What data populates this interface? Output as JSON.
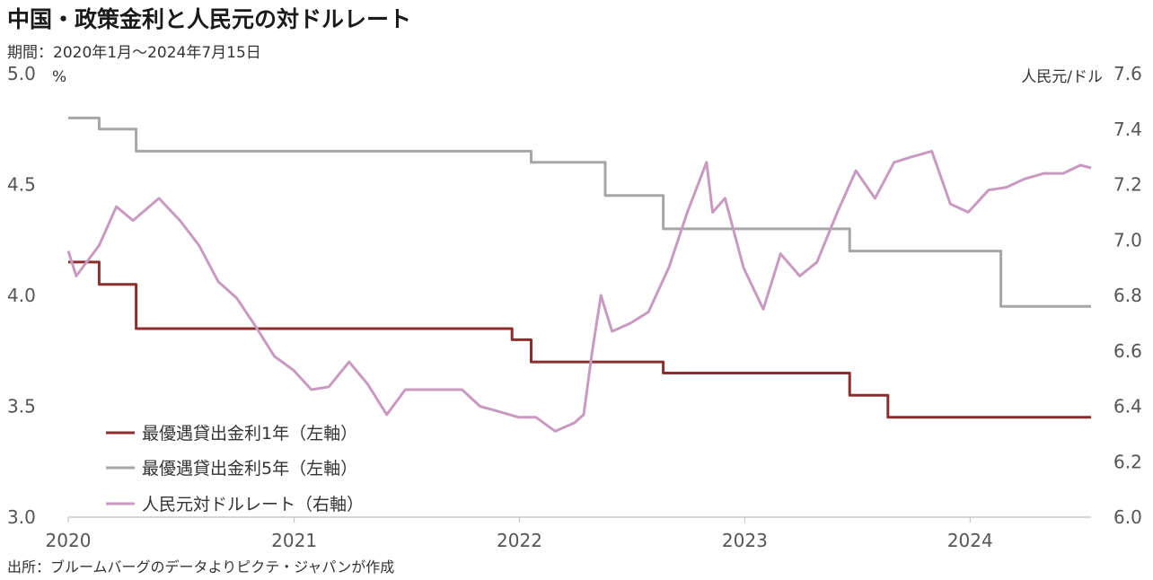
{
  "title": "中国・政策金利と人民元の対ドルレート",
  "period": "期間：2020年1月～2024年7月15日",
  "source": "出所：ブルームバーグのデータよりピクテ・ジャパンが作成",
  "colors": {
    "lpr1y": "#8b2e2e",
    "lpr5y": "#a6a6a6",
    "cny": "#c89ac0",
    "axis": "#bdbdbd"
  },
  "chart_data": {
    "type": "line",
    "x_range": [
      "2020-01-01",
      "2024-07-15"
    ],
    "x_ticks": [
      "2020",
      "2021",
      "2022",
      "2023",
      "2024"
    ],
    "left_axis": {
      "unit": "%",
      "range": [
        3.0,
        5.0
      ],
      "ticks": [
        "3.0",
        "3.5",
        "4.0",
        "4.5",
        "5.0"
      ]
    },
    "right_axis": {
      "unit": "人民元/ドル",
      "range": [
        6.0,
        7.6
      ],
      "ticks": [
        "6.0",
        "6.2",
        "6.4",
        "6.6",
        "6.8",
        "7.0",
        "7.2",
        "7.4",
        "7.6"
      ]
    },
    "legend": [
      "最優遇貸出金利1年（左軸）",
      "最優遇貸出金利5年（左軸）",
      "人民元対ドルレート（右軸）"
    ],
    "series": [
      {
        "name": "最優遇貸出金利1年（左軸）",
        "axis": "left",
        "step": true,
        "points": [
          [
            "2020-01-01",
            4.15
          ],
          [
            "2020-02-20",
            4.05
          ],
          [
            "2020-04-20",
            3.85
          ],
          [
            "2021-12-20",
            3.8
          ],
          [
            "2022-01-20",
            3.7
          ],
          [
            "2022-08-22",
            3.65
          ],
          [
            "2023-06-20",
            3.55
          ],
          [
            "2023-08-21",
            3.45
          ],
          [
            "2024-07-15",
            3.45
          ]
        ]
      },
      {
        "name": "最優遇貸出金利5年（左軸）",
        "axis": "left",
        "step": true,
        "points": [
          [
            "2020-01-01",
            4.8
          ],
          [
            "2020-02-20",
            4.75
          ],
          [
            "2020-04-20",
            4.65
          ],
          [
            "2022-01-20",
            4.6
          ],
          [
            "2022-05-20",
            4.45
          ],
          [
            "2022-08-22",
            4.3
          ],
          [
            "2023-06-20",
            4.2
          ],
          [
            "2024-02-20",
            3.95
          ],
          [
            "2024-07-15",
            3.95
          ]
        ]
      },
      {
        "name": "人民元対ドルレート（右軸）",
        "axis": "right",
        "step": false,
        "points": [
          [
            "2020-01-01",
            6.96
          ],
          [
            "2020-01-14",
            6.87
          ],
          [
            "2020-02-20",
            6.98
          ],
          [
            "2020-03-19",
            7.12
          ],
          [
            "2020-04-15",
            7.07
          ],
          [
            "2020-05-27",
            7.15
          ],
          [
            "2020-06-30",
            7.07
          ],
          [
            "2020-07-31",
            6.98
          ],
          [
            "2020-08-31",
            6.85
          ],
          [
            "2020-09-30",
            6.79
          ],
          [
            "2020-10-30",
            6.69
          ],
          [
            "2020-11-30",
            6.58
          ],
          [
            "2020-12-31",
            6.53
          ],
          [
            "2021-01-29",
            6.46
          ],
          [
            "2021-02-26",
            6.47
          ],
          [
            "2021-03-31",
            6.56
          ],
          [
            "2021-04-30",
            6.48
          ],
          [
            "2021-05-31",
            6.37
          ],
          [
            "2021-06-30",
            6.46
          ],
          [
            "2021-07-30",
            6.46
          ],
          [
            "2021-08-31",
            6.46
          ],
          [
            "2021-09-30",
            6.46
          ],
          [
            "2021-10-29",
            6.4
          ],
          [
            "2021-11-30",
            6.38
          ],
          [
            "2021-12-31",
            6.36
          ],
          [
            "2022-01-28",
            6.36
          ],
          [
            "2022-02-28",
            6.31
          ],
          [
            "2022-03-31",
            6.34
          ],
          [
            "2022-04-15",
            6.37
          ],
          [
            "2022-04-29",
            6.6
          ],
          [
            "2022-05-13",
            6.8
          ],
          [
            "2022-05-31",
            6.67
          ],
          [
            "2022-06-30",
            6.7
          ],
          [
            "2022-07-29",
            6.74
          ],
          [
            "2022-08-31",
            6.9
          ],
          [
            "2022-09-30",
            7.1
          ],
          [
            "2022-10-31",
            7.28
          ],
          [
            "2022-11-10",
            7.1
          ],
          [
            "2022-11-30",
            7.15
          ],
          [
            "2022-12-30",
            6.9
          ],
          [
            "2023-01-31",
            6.75
          ],
          [
            "2023-02-28",
            6.95
          ],
          [
            "2023-03-31",
            6.87
          ],
          [
            "2023-04-28",
            6.92
          ],
          [
            "2023-05-31",
            7.1
          ],
          [
            "2023-06-30",
            7.25
          ],
          [
            "2023-07-31",
            7.15
          ],
          [
            "2023-08-31",
            7.28
          ],
          [
            "2023-09-29",
            7.3
          ],
          [
            "2023-10-31",
            7.32
          ],
          [
            "2023-11-30",
            7.13
          ],
          [
            "2023-12-29",
            7.1
          ],
          [
            "2024-01-31",
            7.18
          ],
          [
            "2024-02-29",
            7.19
          ],
          [
            "2024-03-29",
            7.22
          ],
          [
            "2024-04-30",
            7.24
          ],
          [
            "2024-05-31",
            7.24
          ],
          [
            "2024-06-28",
            7.27
          ],
          [
            "2024-07-15",
            7.26
          ]
        ]
      }
    ]
  }
}
